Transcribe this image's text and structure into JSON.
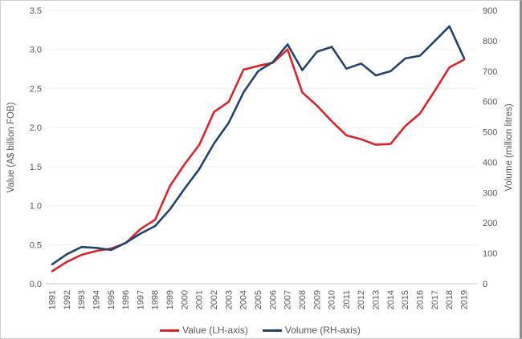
{
  "figure": {
    "background": "#ffffff",
    "border_color": "#8e8e8e"
  },
  "colors": {
    "value_line": "#d8262c",
    "volume_line": "#23456b",
    "tick_text": "#595959",
    "gridline": "#f0f0f0",
    "axis_line": "#d9d9d9"
  },
  "chart_data": {
    "type": "line",
    "title": "",
    "x": [
      1991,
      1992,
      1993,
      1994,
      1995,
      1996,
      1997,
      1998,
      1999,
      2000,
      2001,
      2002,
      2003,
      2004,
      2005,
      2006,
      2007,
      2008,
      2009,
      2010,
      2011,
      2012,
      2013,
      2014,
      2015,
      2016,
      2017,
      2018,
      2019
    ],
    "series": [
      {
        "name": "Value (LH-axis)",
        "axis": "left",
        "color": "#d8262c",
        "values": [
          0.16,
          0.28,
          0.37,
          0.42,
          0.45,
          0.52,
          0.7,
          0.82,
          1.25,
          1.53,
          1.78,
          2.2,
          2.33,
          2.74,
          2.79,
          2.83,
          3.0,
          2.45,
          2.28,
          2.08,
          1.9,
          1.85,
          1.78,
          1.79,
          2.02,
          2.18,
          2.47,
          2.77,
          2.87
        ]
      },
      {
        "name": "Volume (RH-axis)",
        "axis": "right",
        "color": "#23456b",
        "values": [
          64,
          97,
          121,
          118,
          111,
          135,
          165,
          190,
          245,
          313,
          378,
          462,
          530,
          630,
          700,
          730,
          788,
          703,
          764,
          780,
          708,
          725,
          686,
          700,
          742,
          751,
          799,
          848,
          742
        ]
      }
    ],
    "left_axis": {
      "label": "Value (A$ billion FOB)",
      "min": 0,
      "max": 3.5,
      "step": 0.5
    },
    "right_axis": {
      "label": "Volume (million litres)",
      "min": 0,
      "max": 900,
      "step": 100
    },
    "grid": true,
    "legend_position": "bottom"
  }
}
